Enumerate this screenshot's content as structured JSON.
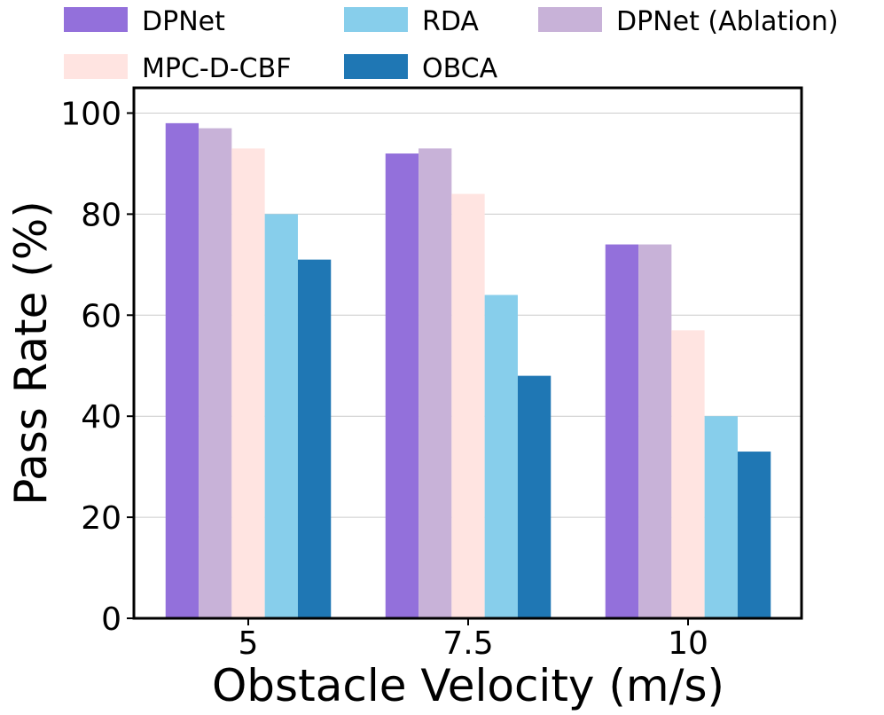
{
  "chart_data": {
    "type": "bar",
    "title": "",
    "xlabel": "Obstacle Velocity (m/s)",
    "ylabel": "Pass Rate (%)",
    "categories": [
      "5",
      "7.5",
      "10"
    ],
    "ylim": [
      0,
      105
    ],
    "yticks": [
      0,
      20,
      40,
      60,
      80,
      100
    ],
    "ytick_labels": [
      "0",
      "20",
      "40",
      "60",
      "80",
      "100"
    ],
    "grid": "y",
    "legend_position": "top",
    "series": [
      {
        "name": "DPNet",
        "color": "#9370DB",
        "values": [
          98,
          92,
          74
        ]
      },
      {
        "name": "DPNet (Ablation)",
        "color": "#C8B2D8",
        "values": [
          97,
          93,
          74
        ]
      },
      {
        "name": "MPC-D-CBF",
        "color": "#FFE4E1",
        "values": [
          93,
          84,
          57
        ]
      },
      {
        "name": "RDA",
        "color": "#87CEEB",
        "values": [
          80,
          64,
          40
        ]
      },
      {
        "name": "OBCA",
        "color": "#1F77B4",
        "values": [
          71,
          48,
          33
        ]
      }
    ],
    "legend_order": [
      "DPNet",
      "RDA",
      "DPNet (Ablation)",
      "MPC-D-CBF",
      "OBCA"
    ]
  }
}
